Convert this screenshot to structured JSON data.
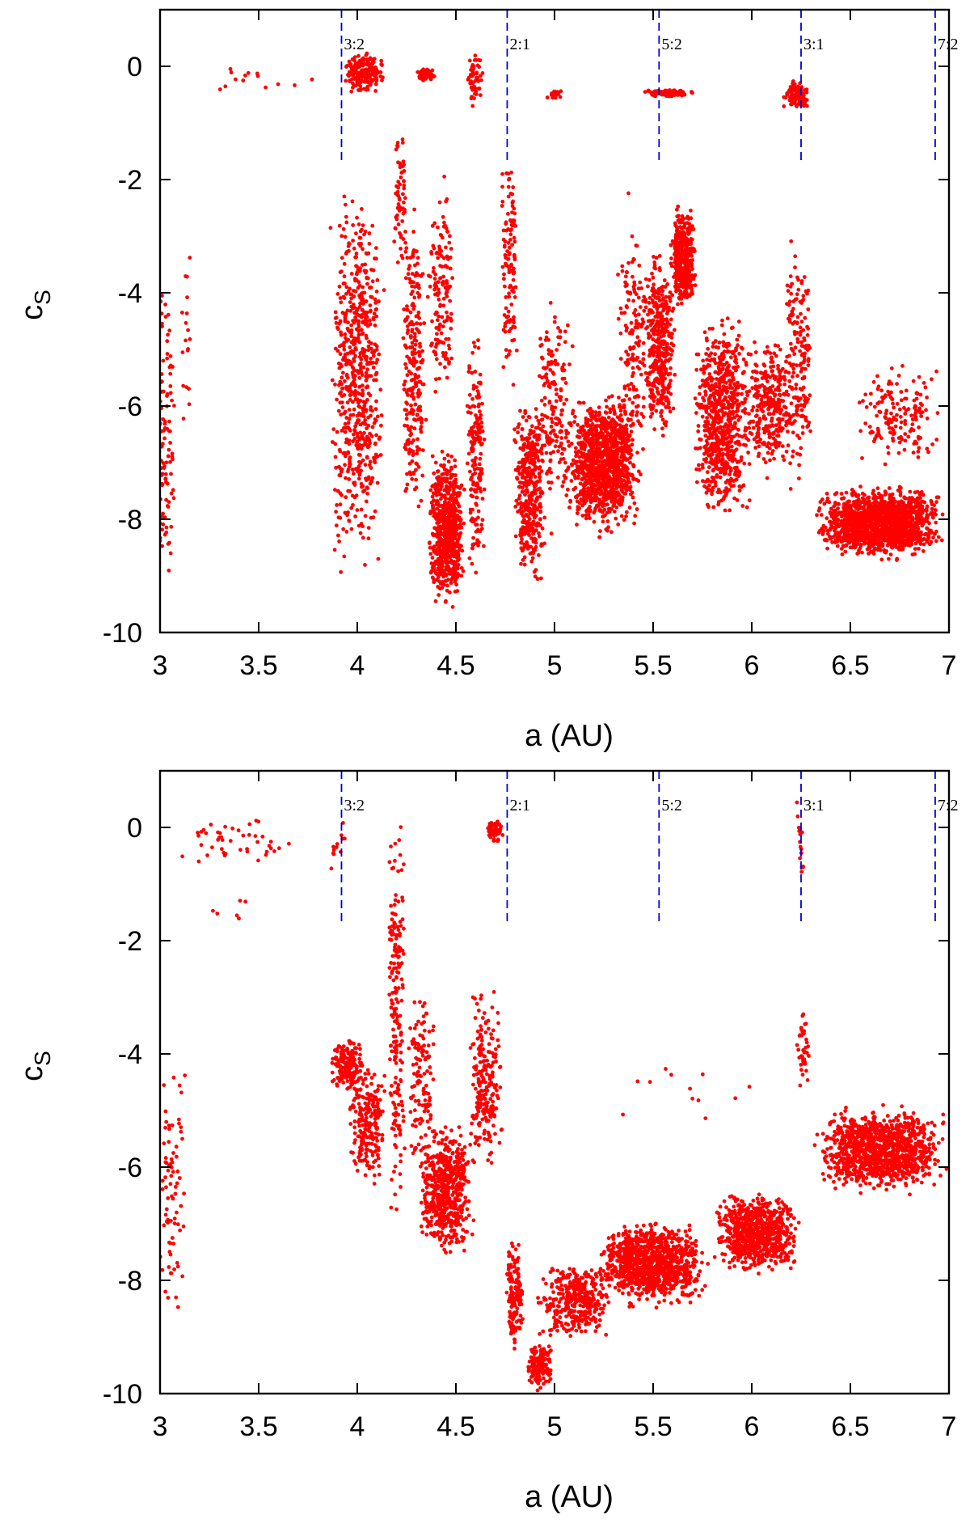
{
  "chart_data": [
    {
      "type": "scatter",
      "title": "",
      "xlabel": "a (AU)",
      "ylabel": "c",
      "ylabel_sub": "S",
      "xlim": [
        3,
        7
      ],
      "ylim": [
        -10,
        1
      ],
      "xticks": [
        3,
        3.5,
        4,
        4.5,
        5,
        5.5,
        6,
        6.5,
        7
      ],
      "xtick_labels": [
        "3",
        "3.5",
        "4",
        "4.5",
        "5",
        "5.5",
        "6",
        "6.5",
        "7"
      ],
      "yticks": [
        -10,
        -8,
        -6,
        -4,
        -2,
        0
      ],
      "ytick_labels": [
        "-10",
        "-8",
        "-6",
        "-4",
        "-2",
        "0"
      ],
      "grid": false,
      "point_color": "#ff0000",
      "resonance_color": "#0000cc",
      "resonances": [
        {
          "label": "3:2",
          "a": 3.92
        },
        {
          "label": "2:1",
          "a": 4.76
        },
        {
          "label": "5:2",
          "a": 5.53
        },
        {
          "label": "3:1",
          "a": 6.25
        },
        {
          "label": "7:2",
          "a": 6.93
        }
      ],
      "clusters": [
        {
          "a": [
            2.98,
            3.08
          ],
          "c": [
            -10.0,
            -3.0
          ],
          "n": 110
        },
        {
          "a": [
            3.1,
            3.16
          ],
          "c": [
            -9.0,
            -1.8
          ],
          "n": 18
        },
        {
          "a": [
            3.05,
            3.9
          ],
          "c": [
            -0.6,
            0.1
          ],
          "n": 14
        },
        {
          "a": [
            3.92,
            4.15
          ],
          "c": [
            -0.55,
            0.3
          ],
          "n": 180
        },
        {
          "a": [
            4.3,
            4.4
          ],
          "c": [
            -0.3,
            0.0
          ],
          "n": 60
        },
        {
          "a": [
            4.55,
            4.65
          ],
          "c": [
            -0.9,
            0.4
          ],
          "n": 50
        },
        {
          "a": [
            4.95,
            5.05
          ],
          "c": [
            -0.6,
            -0.4
          ],
          "n": 20
        },
        {
          "a": [
            5.45,
            5.73
          ],
          "c": [
            -0.55,
            -0.4
          ],
          "n": 90
        },
        {
          "a": [
            6.15,
            6.3
          ],
          "c": [
            -0.8,
            -0.2
          ],
          "n": 120
        },
        {
          "a": [
            3.85,
            4.15
          ],
          "c": [
            -9.5,
            -1.5
          ],
          "n": 650
        },
        {
          "a": [
            4.18,
            4.26
          ],
          "c": [
            -4.0,
            -0.5
          ],
          "n": 60
        },
        {
          "a": [
            4.22,
            4.35
          ],
          "c": [
            -9.0,
            -2.0
          ],
          "n": 250
        },
        {
          "a": [
            4.35,
            4.55
          ],
          "c": [
            -9.8,
            -6.5
          ],
          "n": 700
        },
        {
          "a": [
            4.35,
            4.5
          ],
          "c": [
            -6.5,
            -1.5
          ],
          "n": 150
        },
        {
          "a": [
            4.55,
            4.65
          ],
          "c": [
            -9.6,
            -4.0
          ],
          "n": 180
        },
        {
          "a": [
            4.72,
            4.82
          ],
          "c": [
            -6.0,
            -1.0
          ],
          "n": 120
        },
        {
          "a": [
            4.78,
            4.97
          ],
          "c": [
            -9.5,
            -5.5
          ],
          "n": 400
        },
        {
          "a": [
            4.9,
            5.1
          ],
          "c": [
            -8.5,
            -3.5
          ],
          "n": 180
        },
        {
          "a": [
            5.05,
            5.45
          ],
          "c": [
            -8.5,
            -5.5
          ],
          "n": 1100
        },
        {
          "a": [
            5.45,
            5.62
          ],
          "c": [
            -7.0,
            -3.0
          ],
          "n": 380
        },
        {
          "a": [
            5.58,
            5.72
          ],
          "c": [
            -4.5,
            -2.3
          ],
          "n": 420
        },
        {
          "a": [
            5.7,
            6.0
          ],
          "c": [
            -8.5,
            -4.0
          ],
          "n": 700
        },
        {
          "a": [
            5.95,
            6.22
          ],
          "c": [
            -7.5,
            -4.5
          ],
          "n": 300
        },
        {
          "a": [
            6.15,
            6.32
          ],
          "c": [
            -8.0,
            -2.5
          ],
          "n": 180
        },
        {
          "a": [
            6.3,
            7.0
          ],
          "c": [
            -8.8,
            -7.3
          ],
          "n": 1500
        },
        {
          "a": [
            6.5,
            7.0
          ],
          "c": [
            -7.3,
            -5.0
          ],
          "n": 160
        },
        {
          "a": [
            5.3,
            5.5
          ],
          "c": [
            -7.5,
            -2.0
          ],
          "n": 150
        }
      ]
    },
    {
      "type": "scatter",
      "title": "",
      "xlabel": "a (AU)",
      "ylabel": "c",
      "ylabel_sub": "S",
      "xlim": [
        3,
        7
      ],
      "ylim": [
        -10,
        1
      ],
      "xticks": [
        3,
        3.5,
        4,
        4.5,
        5,
        5.5,
        6,
        6.5,
        7
      ],
      "xtick_labels": [
        "3",
        "3.5",
        "4",
        "4.5",
        "5",
        "5.5",
        "6",
        "6.5",
        "7"
      ],
      "yticks": [
        -10,
        -8,
        -6,
        -4,
        -2,
        0
      ],
      "ytick_labels": [
        "-10",
        "-8",
        "-6",
        "-4",
        "-2",
        "0"
      ],
      "grid": false,
      "point_color": "#ff0000",
      "resonance_color": "#0000cc",
      "resonances": [
        {
          "label": "3:2",
          "a": 3.92
        },
        {
          "label": "2:1",
          "a": 4.76
        },
        {
          "label": "5:2",
          "a": 5.53
        },
        {
          "label": "3:1",
          "a": 6.25
        },
        {
          "label": "7:2",
          "a": 6.93
        }
      ],
      "clusters": [
        {
          "a": [
            2.98,
            3.15
          ],
          "c": [
            -9.2,
            -3.5
          ],
          "n": 80
        },
        {
          "a": [
            3.0,
            3.85
          ],
          "c": [
            -0.8,
            0.3
          ],
          "n": 45
        },
        {
          "a": [
            3.1,
            3.6
          ],
          "c": [
            -1.8,
            -1.2
          ],
          "n": 6
        },
        {
          "a": [
            3.85,
            3.95
          ],
          "c": [
            -0.8,
            0.2
          ],
          "n": 12
        },
        {
          "a": [
            3.85,
            4.05
          ],
          "c": [
            -4.8,
            -3.6
          ],
          "n": 180
        },
        {
          "a": [
            3.95,
            4.15
          ],
          "c": [
            -6.5,
            -4.0
          ],
          "n": 220
        },
        {
          "a": [
            4.15,
            4.25
          ],
          "c": [
            -7.5,
            1.0
          ],
          "n": 200
        },
        {
          "a": [
            4.25,
            4.4
          ],
          "c": [
            -6.5,
            -2.5
          ],
          "n": 120
        },
        {
          "a": [
            4.3,
            4.6
          ],
          "c": [
            -7.8,
            -5.0
          ],
          "n": 550
        },
        {
          "a": [
            4.55,
            4.75
          ],
          "c": [
            -6.5,
            -2.5
          ],
          "n": 220
        },
        {
          "a": [
            4.65,
            4.74
          ],
          "c": [
            -0.3,
            0.2
          ],
          "n": 60
        },
        {
          "a": [
            4.75,
            4.85
          ],
          "c": [
            -9.5,
            -7.0
          ],
          "n": 160
        },
        {
          "a": [
            4.85,
            5.0
          ],
          "c": [
            -10.0,
            -9.0
          ],
          "n": 150
        },
        {
          "a": [
            4.9,
            5.3
          ],
          "c": [
            -9.2,
            -7.5
          ],
          "n": 350
        },
        {
          "a": [
            5.2,
            5.8
          ],
          "c": [
            -8.6,
            -6.8
          ],
          "n": 1000
        },
        {
          "a": [
            5.8,
            6.25
          ],
          "c": [
            -8.0,
            -6.3
          ],
          "n": 750
        },
        {
          "a": [
            6.22,
            6.3
          ],
          "c": [
            -4.8,
            -3.0
          ],
          "n": 40
        },
        {
          "a": [
            6.22,
            6.27
          ],
          "c": [
            -1.5,
            0.8
          ],
          "n": 15
        },
        {
          "a": [
            6.3,
            7.0
          ],
          "c": [
            -6.6,
            -4.8
          ],
          "n": 1100
        },
        {
          "a": [
            5.2,
            6.2
          ],
          "c": [
            -5.5,
            -4.0
          ],
          "n": 12
        }
      ]
    }
  ]
}
